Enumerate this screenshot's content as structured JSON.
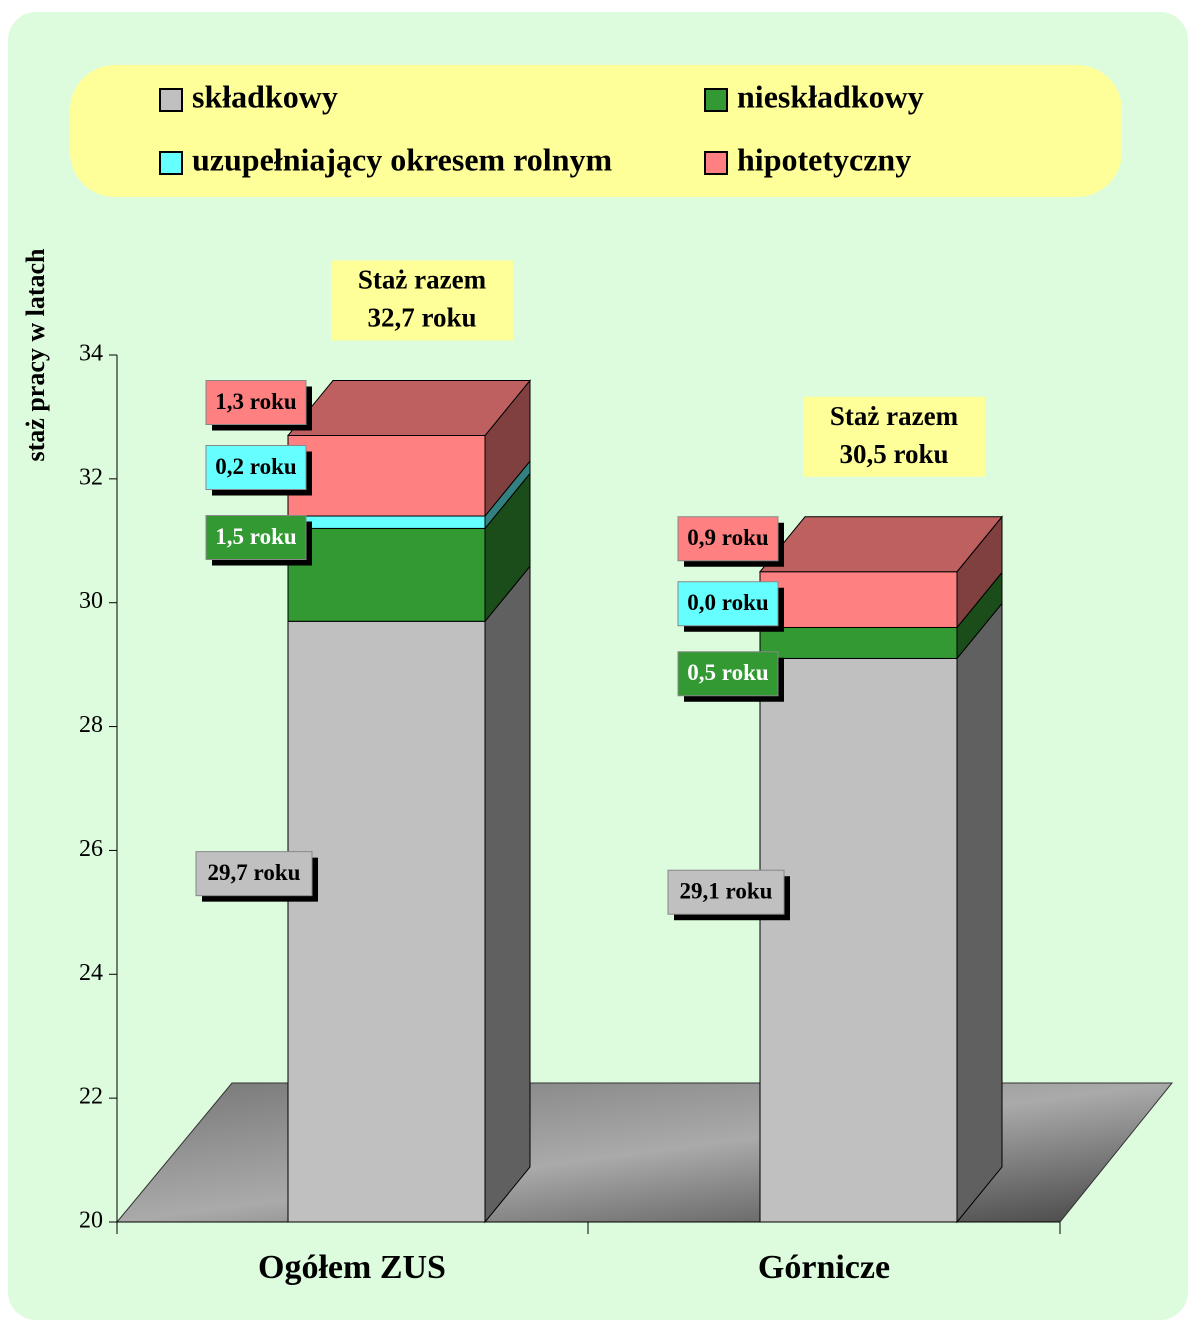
{
  "chart_data": {
    "type": "bar3d_stacked",
    "y_label": "staż pracy w latach",
    "categories": [
      "Ogółem ZUS",
      "Górnicze"
    ],
    "series": [
      {
        "name": "składkowy",
        "color": "#c0c0c0",
        "values": [
          29.7,
          29.1
        ],
        "value_labels": [
          "29,7 roku",
          "29,1 roku"
        ]
      },
      {
        "name": "nieskładkowy",
        "color": "#339933",
        "values": [
          1.5,
          0.5
        ],
        "value_labels": [
          "1,5 roku",
          "0,5 roku"
        ]
      },
      {
        "name": "uzupełniający okresem rolnym",
        "color": "#66ffff",
        "values": [
          0.2,
          0.0
        ],
        "value_labels": [
          "0,2 roku",
          "0,0 roku"
        ]
      },
      {
        "name": "hipotetyczny",
        "color": "#ff8080",
        "values": [
          1.3,
          0.9
        ],
        "value_labels": [
          "1,3 roku",
          "0,9 roku"
        ]
      }
    ],
    "totals": {
      "title": "Staż razem",
      "values": [
        32.7,
        30.5
      ],
      "value_labels": [
        "32,7 roku",
        "30,5 roku"
      ]
    },
    "ylim": [
      20,
      34
    ],
    "yticks": [
      20,
      22,
      24,
      26,
      28,
      30,
      32,
      34
    ],
    "grid": false
  }
}
